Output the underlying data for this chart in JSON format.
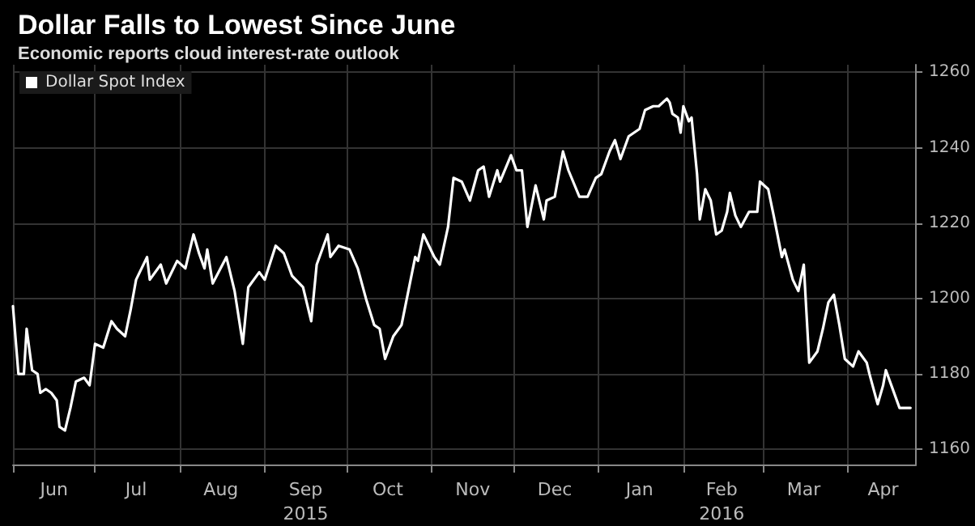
{
  "chart_data": {
    "type": "line",
    "title": "Dollar Falls to Lowest Since June",
    "subtitle": "Economic reports cloud interest-rate outlook",
    "x": [
      "2015-06-01",
      "2015-06-03",
      "2015-06-05",
      "2015-06-06",
      "2015-06-08",
      "2015-06-10",
      "2015-06-11",
      "2015-06-13",
      "2015-06-15",
      "2015-06-17",
      "2015-06-18",
      "2015-06-20",
      "2015-06-22",
      "2015-06-24",
      "2015-06-27",
      "2015-06-29",
      "2015-07-01",
      "2015-07-04",
      "2015-07-07",
      "2015-07-09",
      "2015-07-12",
      "2015-07-14",
      "2015-07-16",
      "2015-07-20",
      "2015-07-21",
      "2015-07-25",
      "2015-07-27",
      "2015-07-31",
      "2015-08-03",
      "2015-08-06",
      "2015-08-08",
      "2015-08-10",
      "2015-08-11",
      "2015-08-13",
      "2015-08-18",
      "2015-08-21",
      "2015-08-24",
      "2015-08-26",
      "2015-08-30",
      "2015-09-01",
      "2015-09-05",
      "2015-09-08",
      "2015-09-11",
      "2015-09-15",
      "2015-09-18",
      "2015-09-20",
      "2015-09-24",
      "2015-09-25",
      "2015-09-28",
      "2015-10-02",
      "2015-10-05",
      "2015-10-08",
      "2015-10-11",
      "2015-10-13",
      "2015-10-15",
      "2015-10-18",
      "2015-10-21",
      "2015-10-26",
      "2015-10-27",
      "2015-10-29",
      "2015-11-02",
      "2015-11-04",
      "2015-11-07",
      "2015-11-09",
      "2015-11-12",
      "2015-11-15",
      "2015-11-18",
      "2015-11-20",
      "2015-11-22",
      "2015-11-25",
      "2015-11-26",
      "2015-11-30",
      "2015-12-02",
      "2015-12-04",
      "2015-12-06",
      "2015-12-09",
      "2015-12-12",
      "2015-12-13",
      "2015-12-16",
      "2015-12-17",
      "2015-12-19",
      "2015-12-21",
      "2015-12-25",
      "2015-12-28",
      "2015-12-31",
      "2016-01-02",
      "2016-01-05",
      "2016-01-07",
      "2016-01-09",
      "2016-01-12",
      "2016-01-16",
      "2016-01-18",
      "2016-01-21",
      "2016-01-23",
      "2016-01-26",
      "2016-01-27",
      "2016-01-28",
      "2016-01-30",
      "2016-01-31",
      "2016-02-01",
      "2016-02-03",
      "2016-02-04",
      "2016-02-06",
      "2016-02-07",
      "2016-02-09",
      "2016-02-11",
      "2016-02-13",
      "2016-02-15",
      "2016-02-17",
      "2016-02-18",
      "2016-02-20",
      "2016-02-22",
      "2016-02-25",
      "2016-02-27",
      "2016-02-28",
      "2016-02-29",
      "2016-03-03",
      "2016-03-05",
      "2016-03-08",
      "2016-03-09",
      "2016-03-12",
      "2016-03-14",
      "2016-03-16",
      "2016-03-18",
      "2016-03-21",
      "2016-03-23",
      "2016-03-25",
      "2016-03-27",
      "2016-03-29",
      "2016-03-31",
      "2016-04-03",
      "2016-04-05",
      "2016-04-08",
      "2016-04-09",
      "2016-04-12",
      "2016-04-14",
      "2016-04-15",
      "2016-04-17",
      "2016-04-20",
      "2016-04-24"
    ],
    "series": [
      {
        "name": "Dollar Spot Index",
        "color": "#ffffff",
        "values": [
          1198,
          1180,
          1180,
          1192,
          1181,
          1180,
          1175,
          1176,
          1175,
          1173,
          1166,
          1165,
          1171,
          1178,
          1179,
          1177,
          1188,
          1187,
          1194,
          1192,
          1190,
          1197,
          1205,
          1211,
          1205,
          1209,
          1204,
          1210,
          1208,
          1217,
          1212,
          1208,
          1213,
          1204,
          1211,
          1202,
          1188,
          1203,
          1207,
          1205,
          1214,
          1212,
          1206,
          1203,
          1194,
          1209,
          1217,
          1211,
          1214,
          1213,
          1208,
          1200,
          1193,
          1192,
          1184,
          1190,
          1193,
          1211,
          1210,
          1217,
          1211,
          1209,
          1219,
          1232,
          1231,
          1226,
          1234,
          1235,
          1227,
          1234,
          1231,
          1238,
          1234,
          1234,
          1219,
          1230,
          1221,
          1226,
          1227,
          1231,
          1239,
          1234,
          1227,
          1227,
          1232,
          1233,
          1239,
          1242,
          1237,
          1243,
          1245,
          1250,
          1251,
          1251,
          1253,
          1252,
          1249,
          1248,
          1244,
          1251,
          1247,
          1248,
          1233,
          1221,
          1229,
          1226,
          1217,
          1218,
          1223,
          1228,
          1222,
          1219,
          1223,
          1223,
          1223,
          1231,
          1229,
          1222,
          1211,
          1213,
          1205,
          1202,
          1209,
          1183,
          1186,
          1192,
          1199,
          1201,
          1193,
          1184,
          1182,
          1186,
          1183,
          1180,
          1172,
          1177,
          1181,
          1177,
          1171,
          1171
        ]
      }
    ],
    "xlim": [
      "2015-06-01",
      "2016-04-26"
    ],
    "xticks": [
      {
        "value": "2015-06-01",
        "label": null
      },
      {
        "value": "2015-06-16",
        "label": "Jun"
      },
      {
        "value": "2015-07-01",
        "label": null
      },
      {
        "value": "2015-07-16",
        "label": "Jul"
      },
      {
        "value": "2015-08-01",
        "label": null
      },
      {
        "value": "2015-08-16",
        "label": "Aug"
      },
      {
        "value": "2015-09-01",
        "label": null
      },
      {
        "value": "2015-09-16",
        "label": "Sep\n2015"
      },
      {
        "value": "2015-10-01",
        "label": null
      },
      {
        "value": "2015-10-16",
        "label": "Oct"
      },
      {
        "value": "2015-11-01",
        "label": null
      },
      {
        "value": "2015-11-16",
        "label": "Nov"
      },
      {
        "value": "2015-12-01",
        "label": null
      },
      {
        "value": "2015-12-16",
        "label": "Dec"
      },
      {
        "value": "2016-01-01",
        "label": null
      },
      {
        "value": "2016-01-16",
        "label": "Jan"
      },
      {
        "value": "2016-02-01",
        "label": null
      },
      {
        "value": "2016-02-15",
        "label": "Feb\n2016"
      },
      {
        "value": "2016-03-01",
        "label": null
      },
      {
        "value": "2016-03-16",
        "label": "Mar"
      },
      {
        "value": "2016-04-01",
        "label": null
      },
      {
        "value": "2016-04-14",
        "label": "Apr"
      }
    ],
    "ylim": [
      1156,
      1262
    ],
    "yticks": [
      1160,
      1180,
      1200,
      1220,
      1240,
      1260
    ],
    "grid": true,
    "legend": "top left",
    "marker": "none",
    "line_style": "solid"
  }
}
